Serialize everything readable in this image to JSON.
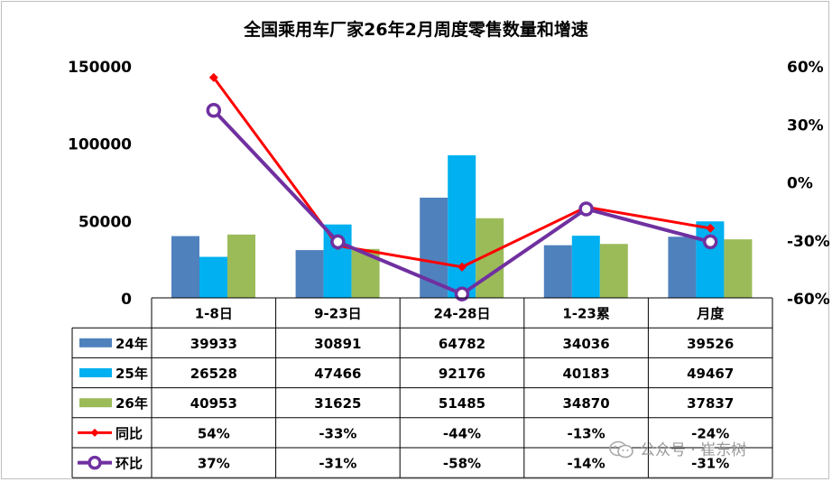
{
  "chart_data": {
    "type": "bar",
    "title": "全国乘用车厂家26年2月周度零售数量和增速",
    "categories": [
      "1-8日",
      "9-23日",
      "24-28日",
      "1-23累",
      "月度"
    ],
    "series": [
      {
        "name": "24年",
        "kind": "bar",
        "color": "#4f81bd",
        "values": [
          39933,
          30891,
          64782,
          34036,
          39526
        ]
      },
      {
        "name": "25年",
        "kind": "bar",
        "color": "#00b0f0",
        "values": [
          26528,
          47466,
          92176,
          40183,
          49467
        ]
      },
      {
        "name": "26年",
        "kind": "bar",
        "color": "#9bbb59",
        "values": [
          40953,
          31625,
          51485,
          34870,
          37837
        ]
      }
    ],
    "line_series": [
      {
        "name": "同比",
        "kind": "line",
        "color": "#ff0000",
        "marker": "diamond",
        "values": [
          54,
          -33,
          -44,
          -13,
          -24
        ],
        "labels": [
          "54%",
          "-33%",
          "-44%",
          "-13%",
          "-24%"
        ]
      },
      {
        "name": "环比",
        "kind": "line",
        "color": "#7030a0",
        "marker": "circle",
        "values": [
          37,
          -31,
          -58,
          -14,
          -31
        ],
        "labels": [
          "37%",
          "-31%",
          "-58%",
          "-14%",
          "-31%"
        ]
      }
    ],
    "y_left": {
      "min": 0,
      "max": 150000,
      "ticks": [
        "150000",
        "100000",
        "50000",
        "0"
      ]
    },
    "y_right": {
      "min": -60,
      "max": 60,
      "unit": "%",
      "ticks": [
        "60%",
        "30%",
        "0%",
        "-30%",
        "-60%"
      ]
    },
    "grid": false,
    "legend": "data-table"
  },
  "watermark": "公众号 · 崔东树"
}
